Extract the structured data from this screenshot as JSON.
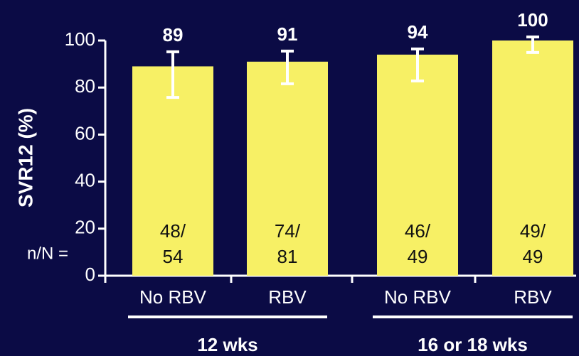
{
  "chart_data": {
    "type": "bar",
    "y_label": "SVR12 (%)",
    "categories": [
      "No RBV",
      "RBV",
      "No RBV",
      "RBV"
    ],
    "values": [
      89,
      91,
      94,
      100
    ],
    "ci_low": [
      75.8,
      81.6,
      82.8,
      94.9
    ],
    "ci_high": [
      95.2,
      95.5,
      96.4,
      101.5
    ],
    "n_labels": [
      [
        "48/",
        "54"
      ],
      [
        "74/",
        "81"
      ],
      [
        "46/",
        "49"
      ],
      [
        "49/",
        "49"
      ]
    ],
    "n_label_title": "n/N =",
    "groups": [
      {
        "label": "12 wks",
        "categories": [
          0,
          1
        ]
      },
      {
        "label": "16 or 18 wks",
        "categories": [
          2,
          3
        ]
      }
    ],
    "color": "#f7f065",
    "ylim": [
      0,
      100
    ],
    "yticks": [
      0,
      20,
      40,
      60,
      80,
      100
    ],
    "grid": false
  }
}
